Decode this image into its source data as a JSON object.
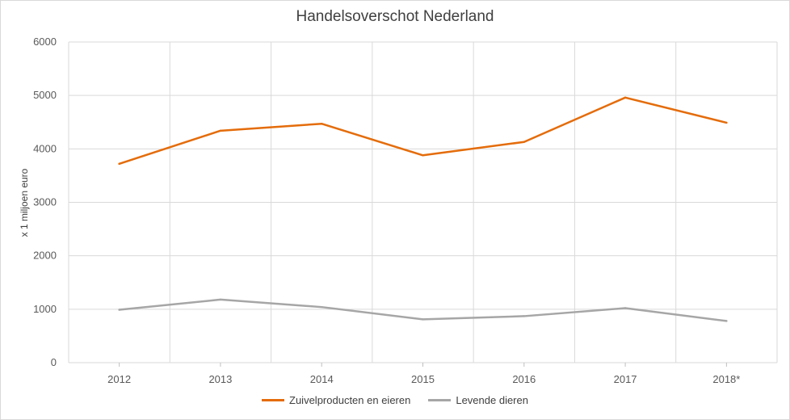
{
  "chart_data": {
    "type": "line",
    "title": "Handelsoverschot Nederland",
    "xlabel": "",
    "ylabel": "x 1 miljoen euro",
    "categories": [
      "2012",
      "2013",
      "2014",
      "2015",
      "2016",
      "2017",
      "2018*"
    ],
    "ylim": [
      0,
      6000
    ],
    "yticks": [
      "0",
      "1000",
      "2000",
      "3000",
      "4000",
      "5000",
      "6000"
    ],
    "grid": true,
    "legend_position": "bottom",
    "series": [
      {
        "name": "Zuivelproducten en eieren",
        "color": "#e46c0a",
        "values": [
          3720,
          4340,
          4470,
          3880,
          4130,
          4960,
          4490
        ]
      },
      {
        "name": "Levende dieren",
        "color": "#a6a6a6",
        "values": [
          990,
          1180,
          1040,
          810,
          870,
          1020,
          780
        ]
      }
    ]
  }
}
